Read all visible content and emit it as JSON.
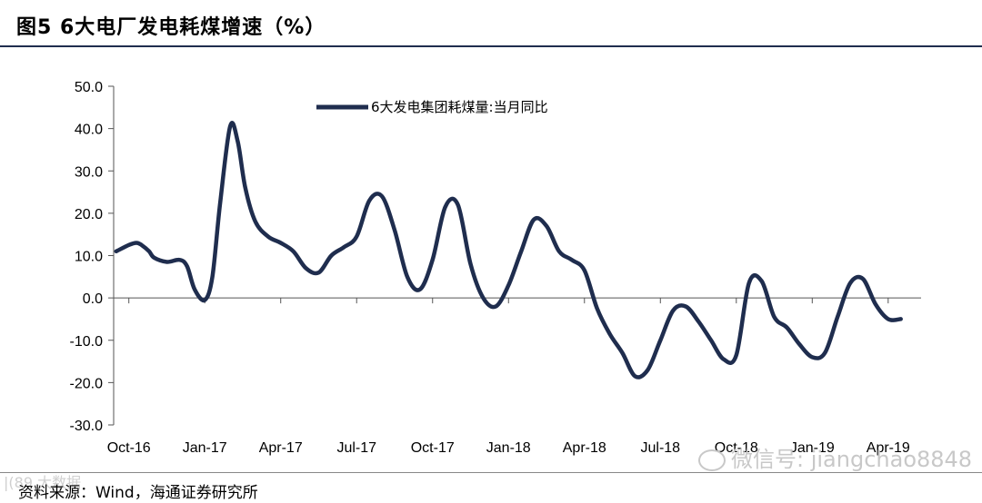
{
  "header": {
    "title": "图5  6大电厂发电耗煤增速（%）"
  },
  "footer": {
    "source": "资料来源：Wind，海通证券研究所"
  },
  "watermark": {
    "text": "微信号: jiangchao8848",
    "corner": "|(89 大数据"
  },
  "colors": {
    "series": "#1f2d4e",
    "axis": "#555555"
  },
  "chart_data": {
    "type": "line",
    "ylim": [
      -30,
      50
    ],
    "yticks": [
      "50.0",
      "40.0",
      "30.0",
      "20.0",
      "10.0",
      "0.0",
      "-10.0",
      "-20.0",
      "-30.0"
    ],
    "ytick_values": [
      50,
      40,
      30,
      20,
      10,
      0,
      -10,
      -20,
      -30
    ],
    "x_tick_labels": [
      "Oct-16",
      "Jan-17",
      "Apr-17",
      "Jul-17",
      "Oct-17",
      "Jan-18",
      "Apr-18",
      "Jul-18",
      "Oct-18",
      "Jan-19",
      "Apr-19"
    ],
    "x_tick_months": [
      0,
      3,
      6,
      9,
      12,
      15,
      18,
      21,
      24,
      27,
      30
    ],
    "xlim": [
      -0.6,
      31.3
    ],
    "legend_position": "top-center",
    "series": [
      {
        "name": "6大发电集团耗煤量:当月同比",
        "x": [
          -0.5,
          0,
          0.3,
          0.5,
          0.8,
          1,
          1.5,
          2,
          2.3,
          2.6,
          3,
          3.3,
          3.6,
          4,
          4.3,
          4.6,
          5,
          5.5,
          6,
          6.5,
          7,
          7.5,
          8,
          8.5,
          9,
          9.5,
          10,
          10.5,
          11,
          11.5,
          12,
          12.5,
          13,
          13.5,
          14,
          14.5,
          15,
          15.5,
          16,
          16.5,
          17,
          17.5,
          18,
          18.5,
          19,
          19.5,
          20,
          20.5,
          21,
          21.5,
          22,
          22.5,
          23,
          23.5,
          24,
          24.5,
          25,
          25.5,
          26,
          26.5,
          27,
          27.5,
          28,
          28.5,
          29,
          29.5,
          30,
          30.5
        ],
        "values": [
          11.0,
          12.5,
          13.0,
          12.5,
          11.0,
          9.5,
          8.5,
          9.0,
          7.5,
          2.0,
          -0.5,
          5.0,
          22.0,
          40.5,
          37.0,
          26.0,
          18.0,
          14.5,
          13.0,
          11.0,
          7.0,
          6.0,
          10.0,
          12.0,
          14.5,
          23.0,
          24.0,
          16.0,
          5.0,
          2.0,
          9.0,
          21.5,
          22.0,
          8.0,
          0.0,
          -2.0,
          3.0,
          11.0,
          18.5,
          17.0,
          11.0,
          9.0,
          6.5,
          -2.5,
          -8.5,
          -13.0,
          -18.5,
          -17.0,
          -10.0,
          -3.0,
          -2.0,
          -5.5,
          -10.0,
          -14.5,
          -13.5,
          3.5,
          4.0,
          -4.5,
          -7.0,
          -11.0,
          -14.0,
          -13.0,
          -4.5,
          3.5,
          4.5,
          -1.5,
          -5.0,
          -5.0
        ]
      }
    ]
  }
}
